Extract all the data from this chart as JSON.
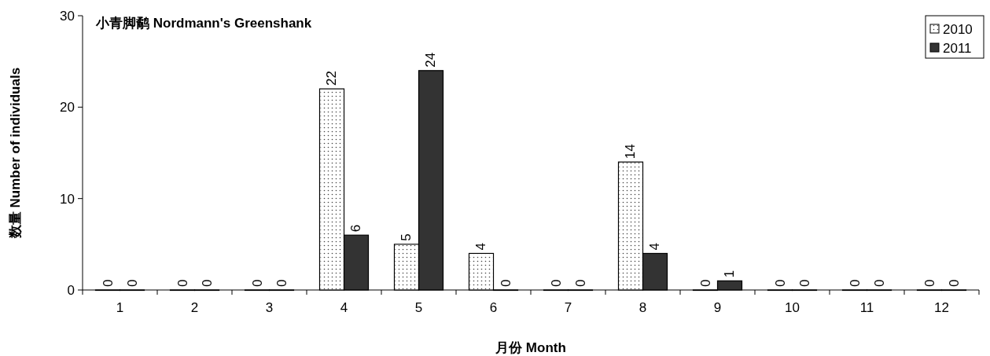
{
  "chart_data": {
    "type": "bar",
    "title": "小青脚鹬 Nordmann's Greenshank",
    "xlabel": "月份 Month",
    "ylabel": "数量 Number of individuals",
    "categories": [
      "1",
      "2",
      "3",
      "4",
      "5",
      "6",
      "7",
      "8",
      "9",
      "10",
      "11",
      "12"
    ],
    "series": [
      {
        "name": "2010",
        "color": "#ffffff",
        "values": [
          0,
          0,
          0,
          22,
          5,
          4,
          0,
          14,
          0,
          0,
          0,
          0
        ]
      },
      {
        "name": "2011",
        "color": "#333333",
        "values": [
          0,
          0,
          0,
          6,
          24,
          0,
          0,
          4,
          1,
          0,
          0,
          0
        ]
      }
    ],
    "ylim": [
      0,
      30
    ],
    "yticks": [
      0,
      10,
      20,
      30
    ],
    "grid": false,
    "legend": "top right",
    "data_labels": true
  }
}
